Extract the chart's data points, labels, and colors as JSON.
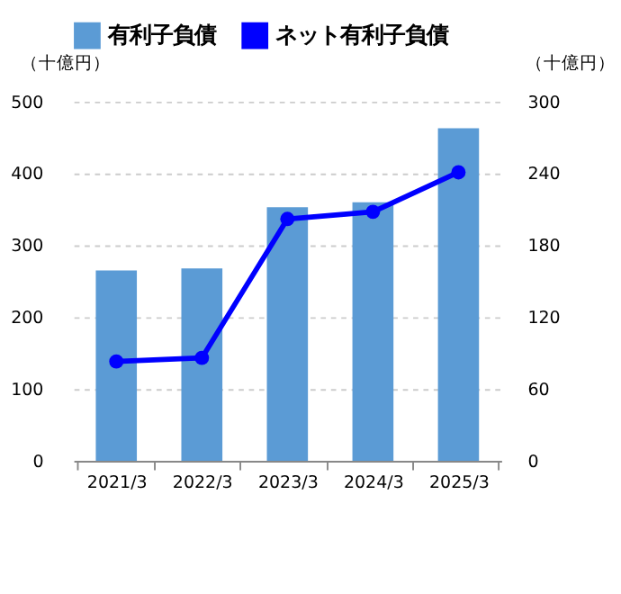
{
  "chart_data": {
    "type": "bar",
    "categories": [
      "2021/3",
      "2022/3",
      "2023/3",
      "2024/3",
      "2025/3"
    ],
    "series": [
      {
        "name": "有利子負債",
        "color": "#5b9bd5",
        "values": [
          265,
          268,
          353,
          360,
          463
        ]
      },
      {
        "name": "ネット有利子負債",
        "color": "#0000ff",
        "type": "line",
        "axis": "y2",
        "values": [
          83,
          86,
          202,
          208,
          241
        ]
      }
    ],
    "ylabel": "（十億円）",
    "y2label": "（十億円）",
    "ylim": [
      0,
      500
    ],
    "yticks": [
      0,
      100,
      200,
      300,
      400,
      500
    ],
    "y2lim": [
      0,
      300
    ],
    "y2ticks": [
      0,
      60,
      120,
      180,
      240,
      300
    ],
    "grid": "y",
    "legend": "top",
    "marker": "circle"
  }
}
